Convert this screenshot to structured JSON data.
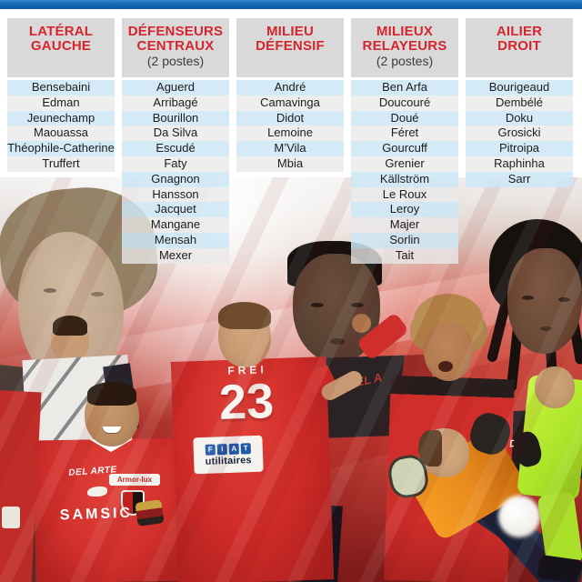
{
  "colors": {
    "top_bar_blue": "#1a6ab4",
    "header_bg": "#d9d9d9",
    "title_red": "#d5252d",
    "stripe_blue": "#cfe8f6",
    "stripe_gray": "#e9e9e9",
    "jersey_red": "#d02e2a",
    "gk_orange": "#e8891d",
    "gk_green": "#aee62c"
  },
  "columns": [
    {
      "title_line1": "LATÉRAL",
      "title_line2": "GAUCHE",
      "players": [
        "Bensebaini",
        "Edman",
        "Jeunechamp",
        "Maouassa",
        "Théophile-Catherine",
        "Truffert"
      ]
    },
    {
      "title_line1": "DÉFENSEURS",
      "title_line2": "CENTRAUX",
      "subtitle": "(2 postes)",
      "players": [
        "Aguerd",
        "Arribagé",
        "Bourillon",
        "Da Silva",
        "Escudé",
        "Faty",
        "Gnagnon",
        "Hansson",
        "Jacquet",
        "Mangane",
        "Mensah",
        "Mexer"
      ]
    },
    {
      "title_line1": "MILIEU",
      "title_line2": "DÉFENSIF",
      "players": [
        "André",
        "Camavinga",
        "Didot",
        "Lemoine",
        "M’Vila",
        "Mbia"
      ]
    },
    {
      "title_line1": "MILIEUX",
      "title_line2": "RELAYEURS",
      "subtitle": "(2 postes)",
      "players": [
        "Ben Arfa",
        "Doucouré",
        "Doué",
        "Féret",
        "Gourcuff",
        "Grenier",
        "Källström",
        "Le Roux",
        "Leroy",
        "Majer",
        "Sorlin",
        "Tait"
      ]
    },
    {
      "title_line1": "AILIER",
      "title_line2": "DROIT",
      "players": [
        "Bourigeaud",
        "Dembélé",
        "Doku",
        "Grosicki",
        "Pitroipa",
        "Raphinha",
        "Sarr"
      ]
    }
  ],
  "collage": {
    "jersey_name": "FREI",
    "jersey_number": "23",
    "fiat_letters": [
      "F",
      "I",
      "A",
      "T"
    ],
    "sponsor_utilitaires": "utilitaires",
    "sponsor_delarte": "DEL ARTE",
    "sponsor_armorlux": "Armor-lux",
    "sponsor_samsic": "SAMSIC",
    "watermark_del_red": "DEL A",
    "watermark_del_white": "DEL A",
    "watermark_s": "S"
  }
}
